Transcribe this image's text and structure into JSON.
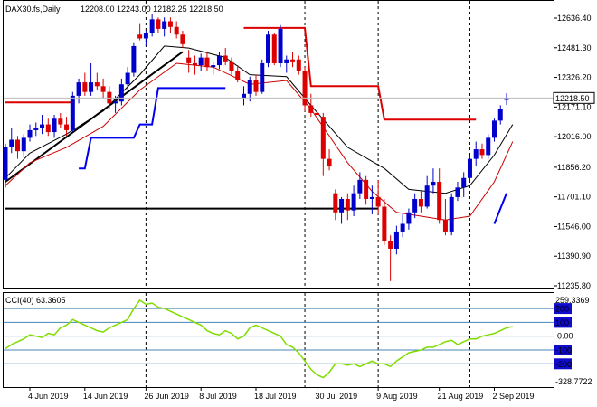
{
  "chart_data": [
    {
      "type": "candlestick",
      "title": "DAX30.fs,Daily",
      "ohlc_header": "12208.00 12243.00 12182.25 12218.50",
      "last_price_label": "12218.50",
      "y_ticks": [
        "12636.40",
        "12481.30",
        "12326.20",
        "12171.10",
        "12016.00",
        "11856.20",
        "11701.10",
        "11546.00",
        "11390.90",
        "11235.80"
      ],
      "ylim": [
        11235.8,
        12636.4
      ],
      "x_ticks": [
        "4 Jun 2019",
        "14 Jun 2019",
        "26 Jun 2019",
        "8 Jul 2019",
        "18 Jul 2019",
        "30 Jul 2019",
        "9 Aug 2019",
        "21 Aug 2019",
        "2 Sep 2019"
      ],
      "candles": [
        {
          "o": 11790,
          "h": 11980,
          "l": 11750,
          "c": 11960
        },
        {
          "o": 11960,
          "h": 12060,
          "l": 11930,
          "c": 12000
        },
        {
          "o": 12000,
          "h": 12020,
          "l": 11900,
          "c": 11940
        },
        {
          "o": 11940,
          "h": 12030,
          "l": 11910,
          "c": 12010
        },
        {
          "o": 12010,
          "h": 12080,
          "l": 11990,
          "c": 12050
        },
        {
          "o": 12050,
          "h": 12090,
          "l": 12020,
          "c": 12060
        },
        {
          "o": 12060,
          "h": 12130,
          "l": 12030,
          "c": 12080
        },
        {
          "o": 12080,
          "h": 12110,
          "l": 12020,
          "c": 12040
        },
        {
          "o": 12040,
          "h": 12130,
          "l": 12010,
          "c": 12110
        },
        {
          "o": 12110,
          "h": 12140,
          "l": 12060,
          "c": 12080
        },
        {
          "o": 12080,
          "h": 12120,
          "l": 12020,
          "c": 12050
        },
        {
          "o": 12050,
          "h": 12250,
          "l": 12040,
          "c": 12230
        },
        {
          "o": 12230,
          "h": 12320,
          "l": 12190,
          "c": 12300
        },
        {
          "o": 12300,
          "h": 12350,
          "l": 12230,
          "c": 12250
        },
        {
          "o": 12250,
          "h": 12400,
          "l": 12230,
          "c": 12300
        },
        {
          "o": 12300,
          "h": 12350,
          "l": 12260,
          "c": 12280
        },
        {
          "o": 12280,
          "h": 12320,
          "l": 12220,
          "c": 12250
        },
        {
          "o": 12250,
          "h": 12280,
          "l": 12160,
          "c": 12190
        },
        {
          "o": 12190,
          "h": 12230,
          "l": 12140,
          "c": 12200
        },
        {
          "o": 12200,
          "h": 12320,
          "l": 12180,
          "c": 12290
        },
        {
          "o": 12290,
          "h": 12380,
          "l": 12260,
          "c": 12350
        },
        {
          "o": 12350,
          "h": 12510,
          "l": 12330,
          "c": 12490
        },
        {
          "o": 12550,
          "h": 12610,
          "l": 12520,
          "c": 12530
        },
        {
          "o": 12530,
          "h": 12570,
          "l": 12490,
          "c": 12560
        },
        {
          "o": 12560,
          "h": 12660,
          "l": 12540,
          "c": 12630
        },
        {
          "o": 12630,
          "h": 12640,
          "l": 12560,
          "c": 12580
        },
        {
          "o": 12580,
          "h": 12640,
          "l": 12540,
          "c": 12620
        },
        {
          "o": 12620,
          "h": 12640,
          "l": 12560,
          "c": 12590
        },
        {
          "o": 12590,
          "h": 12620,
          "l": 12530,
          "c": 12550
        },
        {
          "o": 12550,
          "h": 12570,
          "l": 12480,
          "c": 12500
        },
        {
          "o": 12430,
          "h": 12470,
          "l": 12350,
          "c": 12400
        },
        {
          "o": 12400,
          "h": 12440,
          "l": 12340,
          "c": 12390
        },
        {
          "o": 12390,
          "h": 12450,
          "l": 12360,
          "c": 12430
        },
        {
          "o": 12430,
          "h": 12460,
          "l": 12360,
          "c": 12380
        },
        {
          "o": 12380,
          "h": 12410,
          "l": 12340,
          "c": 12390
        },
        {
          "o": 12390,
          "h": 12460,
          "l": 12370,
          "c": 12440
        },
        {
          "o": 12440,
          "h": 12480,
          "l": 12390,
          "c": 12410
        },
        {
          "o": 12410,
          "h": 12430,
          "l": 12340,
          "c": 12360
        },
        {
          "o": 12360,
          "h": 12390,
          "l": 12300,
          "c": 12310
        },
        {
          "o": 12220,
          "h": 12280,
          "l": 12180,
          "c": 12240
        },
        {
          "o": 12240,
          "h": 12330,
          "l": 12200,
          "c": 12310
        },
        {
          "o": 12310,
          "h": 12340,
          "l": 12230,
          "c": 12250
        },
        {
          "o": 12250,
          "h": 12420,
          "l": 12240,
          "c": 12400
        },
        {
          "o": 12400,
          "h": 12570,
          "l": 12380,
          "c": 12550
        },
        {
          "o": 12550,
          "h": 12560,
          "l": 12390,
          "c": 12400
        },
        {
          "o": 12400,
          "h": 12600,
          "l": 12380,
          "c": 12580
        },
        {
          "o": 12400,
          "h": 12440,
          "l": 12350,
          "c": 12420
        },
        {
          "o": 12420,
          "h": 12460,
          "l": 12380,
          "c": 12410
        },
        {
          "o": 12420,
          "h": 12440,
          "l": 12340,
          "c": 12360
        },
        {
          "o": 12360,
          "h": 12380,
          "l": 12150,
          "c": 12180
        },
        {
          "o": 12180,
          "h": 12240,
          "l": 12120,
          "c": 12140
        },
        {
          "o": 12140,
          "h": 12200,
          "l": 12110,
          "c": 12130
        },
        {
          "o": 12120,
          "h": 12140,
          "l": 11810,
          "c": 11900
        },
        {
          "o": 11900,
          "h": 11950,
          "l": 11840,
          "c": 11860
        },
        {
          "o": 11720,
          "h": 11740,
          "l": 11580,
          "c": 11620
        },
        {
          "o": 11620,
          "h": 11700,
          "l": 11560,
          "c": 11690
        },
        {
          "o": 11690,
          "h": 11720,
          "l": 11580,
          "c": 11630
        },
        {
          "o": 11630,
          "h": 11760,
          "l": 11600,
          "c": 11720
        },
        {
          "o": 11720,
          "h": 11830,
          "l": 11690,
          "c": 11790
        },
        {
          "o": 11790,
          "h": 11810,
          "l": 11660,
          "c": 11690
        },
        {
          "o": 11690,
          "h": 11760,
          "l": 11610,
          "c": 11700
        },
        {
          "o": 11700,
          "h": 11790,
          "l": 11610,
          "c": 11650
        },
        {
          "o": 11650,
          "h": 11690,
          "l": 11450,
          "c": 11470
        },
        {
          "o": 11470,
          "h": 11500,
          "l": 11260,
          "c": 11430
        },
        {
          "o": 11430,
          "h": 11550,
          "l": 11400,
          "c": 11520
        },
        {
          "o": 11520,
          "h": 11610,
          "l": 11490,
          "c": 11560
        },
        {
          "o": 11560,
          "h": 11640,
          "l": 11530,
          "c": 11620
        },
        {
          "o": 11620,
          "h": 11720,
          "l": 11590,
          "c": 11690
        },
        {
          "o": 11690,
          "h": 11730,
          "l": 11620,
          "c": 11650
        },
        {
          "o": 11650,
          "h": 11810,
          "l": 11640,
          "c": 11760
        },
        {
          "o": 11760,
          "h": 11850,
          "l": 11720,
          "c": 11780
        },
        {
          "o": 11780,
          "h": 11850,
          "l": 11560,
          "c": 11580
        },
        {
          "o": 11580,
          "h": 11690,
          "l": 11500,
          "c": 11520
        },
        {
          "o": 11520,
          "h": 11720,
          "l": 11500,
          "c": 11700
        },
        {
          "o": 11700,
          "h": 11780,
          "l": 11680,
          "c": 11750
        },
        {
          "o": 11750,
          "h": 11830,
          "l": 11700,
          "c": 11800
        },
        {
          "o": 11800,
          "h": 11920,
          "l": 11780,
          "c": 11900
        },
        {
          "o": 11900,
          "h": 11990,
          "l": 11860,
          "c": 11950
        },
        {
          "o": 11950,
          "h": 11980,
          "l": 11900,
          "c": 11920
        },
        {
          "o": 11920,
          "h": 12030,
          "l": 11900,
          "c": 12010
        },
        {
          "o": 12010,
          "h": 12110,
          "l": 11990,
          "c": 12100
        },
        {
          "o": 12100,
          "h": 12180,
          "l": 12080,
          "c": 12160
        },
        {
          "o": 12208,
          "h": 12243,
          "l": 12182.25,
          "c": 12218.5
        }
      ],
      "ma_black": [
        [
          0,
          11800
        ],
        [
          4,
          11930
        ],
        [
          10,
          12030
        ],
        [
          16,
          12150
        ],
        [
          22,
          12340
        ],
        [
          26,
          12490
        ],
        [
          30,
          12480
        ],
        [
          36,
          12430
        ],
        [
          40,
          12340
        ],
        [
          46,
          12330
        ],
        [
          50,
          12180
        ],
        [
          56,
          11960
        ],
        [
          62,
          11850
        ],
        [
          66,
          11740
        ],
        [
          72,
          11720
        ],
        [
          76,
          11760
        ],
        [
          80,
          11920
        ],
        [
          83,
          12080
        ]
      ],
      "ma_red": [
        [
          0,
          11760
        ],
        [
          4,
          11880
        ],
        [
          10,
          11960
        ],
        [
          16,
          12070
        ],
        [
          22,
          12260
        ],
        [
          28,
          12400
        ],
        [
          34,
          12380
        ],
        [
          40,
          12290
        ],
        [
          46,
          12310
        ],
        [
          50,
          12160
        ],
        [
          56,
          11880
        ],
        [
          60,
          11730
        ],
        [
          64,
          11620
        ],
        [
          68,
          11600
        ],
        [
          72,
          11580
        ],
        [
          76,
          11600
        ],
        [
          80,
          11780
        ],
        [
          83,
          11990
        ]
      ],
      "trend_black": [
        [
          0,
          11780
        ],
        [
          29,
          12460
        ]
      ],
      "hline_black": [
        [
          0,
          11640
        ],
        [
          61,
          11640
        ]
      ],
      "red_steps": [
        [
          [
            0,
            12195
          ],
          [
            11,
            12195
          ]
        ],
        [
          [
            39,
            12585
          ],
          [
            49,
            12585
          ],
          [
            50,
            12280
          ],
          [
            61,
            12280
          ],
          [
            62,
            12105
          ],
          [
            77,
            12105
          ]
        ]
      ],
      "blue_steps": [
        [
          [
            12,
            11850
          ],
          [
            13,
            11850
          ],
          [
            14,
            12010
          ],
          [
            21,
            12010
          ],
          [
            22,
            12080
          ],
          [
            24,
            12080
          ],
          [
            25,
            12270
          ],
          [
            36,
            12270
          ]
        ]
      ],
      "blue_slope": [
        [
          80,
          11560
        ],
        [
          82,
          11720
        ]
      ],
      "vlines": [
        23,
        49,
        61,
        76
      ],
      "cci": {
        "label": "CCI(40) 63.3605",
        "range": [
          -328.7722,
          259.3369
        ],
        "range_labels": [
          "259.3369",
          "-328.7722"
        ],
        "levels": [
          200,
          100,
          0,
          -100,
          -200
        ],
        "level_labels": [
          "200",
          "100",
          "0.00",
          "-100",
          "-200"
        ],
        "values": [
          -90,
          -60,
          -40,
          -20,
          10,
          0,
          -10,
          20,
          10,
          60,
          80,
          120,
          100,
          80,
          60,
          40,
          30,
          60,
          80,
          100,
          120,
          200,
          260,
          230,
          240,
          210,
          200,
          180,
          160,
          140,
          120,
          100,
          80,
          40,
          20,
          10,
          40,
          20,
          -20,
          0,
          60,
          80,
          60,
          40,
          20,
          0,
          -60,
          -80,
          -120,
          -180,
          -240,
          -280,
          -300,
          -260,
          -200,
          -200,
          -210,
          -200,
          -220,
          -200,
          -180,
          -200,
          -200,
          -220,
          -180,
          -150,
          -120,
          -110,
          -100,
          -80,
          -80,
          -60,
          -40,
          -30,
          -60,
          -40,
          -20,
          -20,
          0,
          10,
          20,
          40,
          60,
          70
        ]
      }
    }
  ],
  "colors": {
    "bull_candle": "#0000cc",
    "bear_candle": "#dd0000",
    "ma_black": "#000000",
    "ma_red": "#cc0000",
    "cci_line": "#7fdd00",
    "level_line": "#4a86b7",
    "label_bg": "#0f0ccc",
    "label_fg": "#ffffff"
  }
}
